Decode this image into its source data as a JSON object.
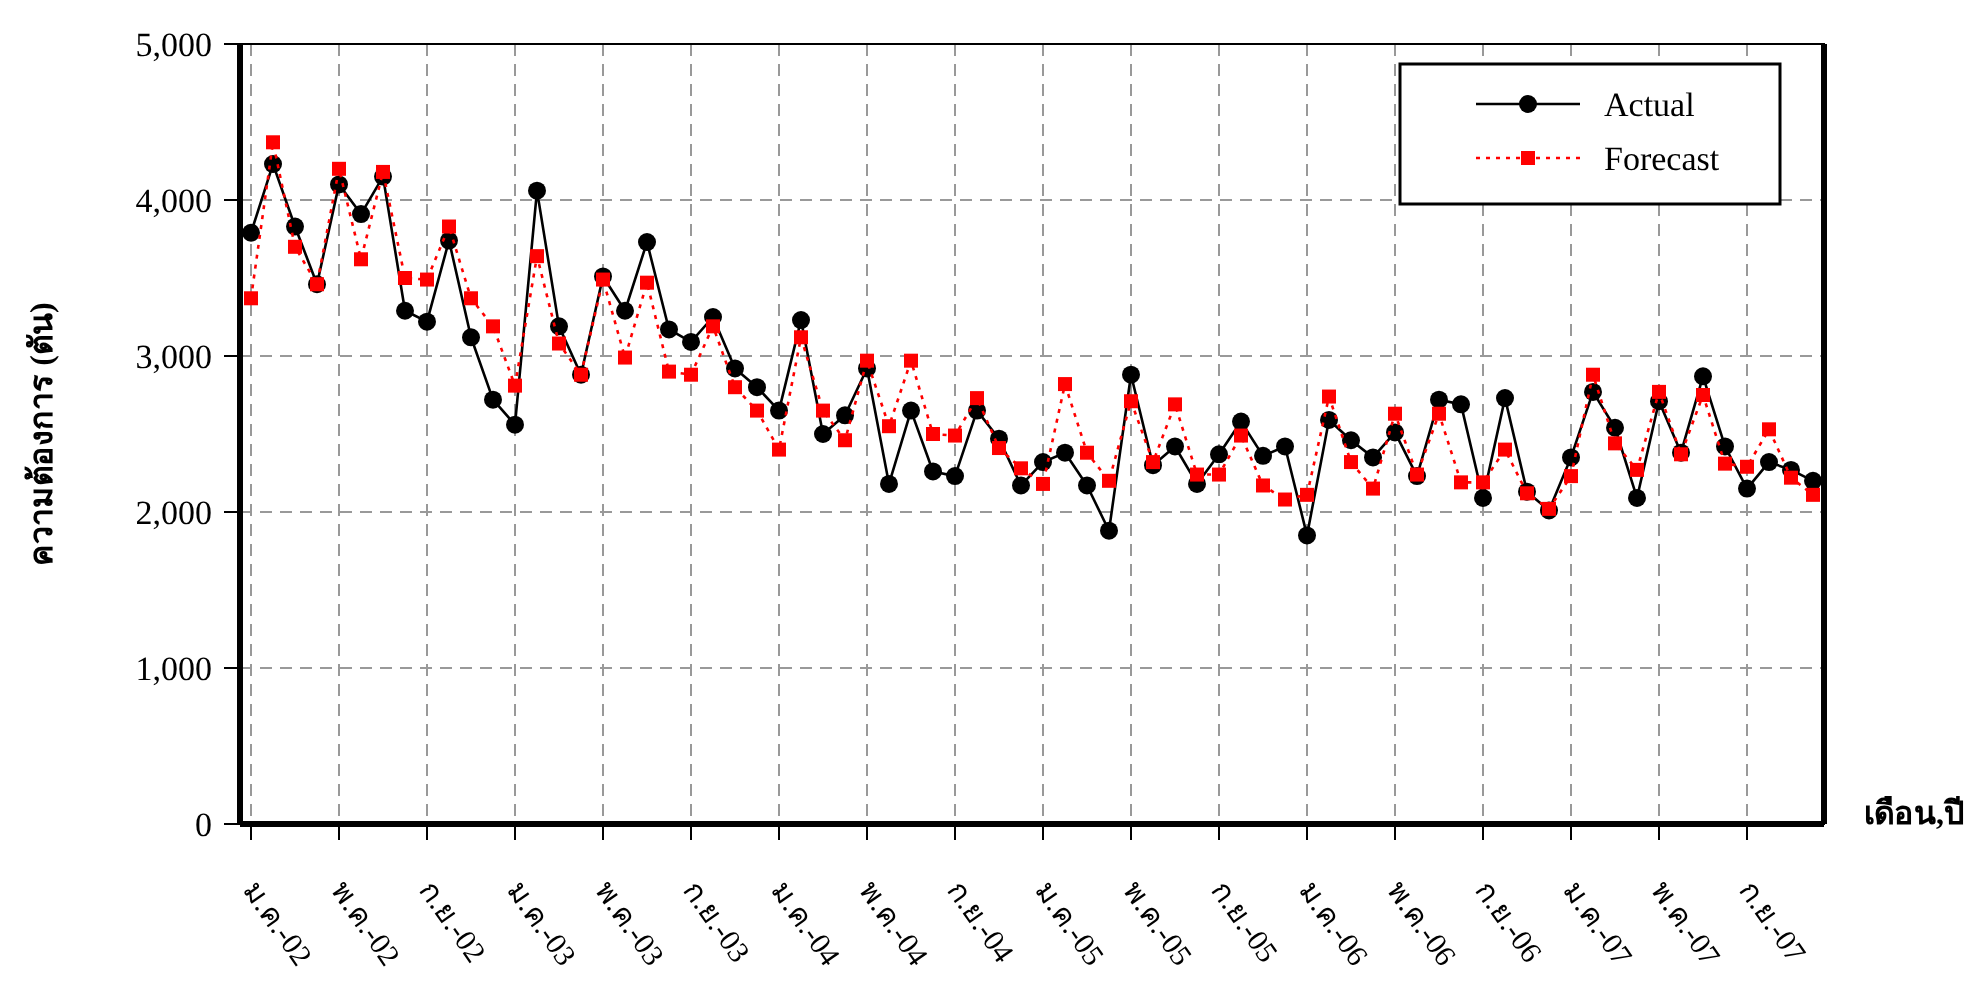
{
  "chart_data": {
    "type": "line",
    "xlabel": "เดือน,ปี",
    "ylabel": "ความต้องการ (ตัน)",
    "categories": [
      "ม.ค.-02",
      null,
      null,
      null,
      "พ.ค.-02",
      null,
      null,
      null,
      "ก.ย.-02",
      null,
      null,
      null,
      "ม.ค.-03",
      null,
      null,
      null,
      "พ.ค.-03",
      null,
      null,
      null,
      "ก.ย.-03",
      null,
      null,
      null,
      "ม.ค.-04",
      null,
      null,
      null,
      "พ.ค.-04",
      null,
      null,
      null,
      "ก.ย.-04",
      null,
      null,
      null,
      "ม.ค.-05",
      null,
      null,
      null,
      "พ.ค.-05",
      null,
      null,
      null,
      "ก.ย.-05",
      null,
      null,
      null,
      "ม.ค.-06",
      null,
      null,
      null,
      "พ.ค.-06",
      null,
      null,
      null,
      "ก.ย.-06",
      null,
      null,
      null,
      "ม.ค.-07",
      null,
      null,
      null,
      "พ.ค.-07",
      null,
      null,
      null,
      "ก.ย.-07",
      null,
      null,
      null
    ],
    "series": [
      {
        "name": "Actual",
        "color": "#000000",
        "marker": "circle",
        "line_style": "solid",
        "values": [
          3790,
          4230,
          3830,
          3460,
          4100,
          3910,
          4150,
          3290,
          3220,
          3740,
          3120,
          2720,
          2560,
          4060,
          3190,
          2880,
          3510,
          3290,
          3730,
          3170,
          3090,
          3250,
          2920,
          2800,
          2650,
          3230,
          2500,
          2620,
          2920,
          2180,
          2650,
          2260,
          2230,
          2650,
          2470,
          2170,
          2320,
          2380,
          2170,
          1880,
          2880,
          2300,
          2420,
          2180,
          2370,
          2580,
          2360,
          2420,
          1850,
          2590,
          2460,
          2350,
          2510,
          2230,
          2720,
          2690,
          2090,
          2730,
          2130,
          2010,
          2350,
          2770,
          2540,
          2090,
          2710,
          2380,
          2870,
          2420,
          2150,
          2320,
          2270,
          2200
        ]
      },
      {
        "name": "Forecast",
        "color": "#ff0000",
        "marker": "square",
        "line_style": "dotted",
        "values": [
          3370,
          4370,
          3700,
          3460,
          4200,
          3620,
          4180,
          3500,
          3490,
          3830,
          3370,
          3190,
          2810,
          3640,
          3080,
          2880,
          3490,
          2990,
          3470,
          2900,
          2880,
          3190,
          2800,
          2650,
          2400,
          3120,
          2650,
          2460,
          2970,
          2550,
          2970,
          2500,
          2490,
          2730,
          2410,
          2280,
          2180,
          2820,
          2380,
          2200,
          2710,
          2320,
          2690,
          2240,
          2240,
          2490,
          2170,
          2080,
          2110,
          2740,
          2320,
          2150,
          2630,
          2240,
          2630,
          2190,
          2190,
          2400,
          2120,
          2020,
          2230,
          2880,
          2440,
          2270,
          2770,
          2370,
          2750,
          2310,
          2290,
          2530,
          2220,
          2110
        ]
      }
    ],
    "ylim": [
      0,
      5000
    ],
    "yticks": [
      0,
      {
        "value": 1000,
        "label": "1,000"
      },
      {
        "value": 2000,
        "label": "2,000"
      },
      {
        "value": 3000,
        "label": "3,000"
      },
      {
        "value": 4000,
        "label": "4,000"
      },
      {
        "value": 5000,
        "label": "5,000"
      }
    ],
    "grid": true,
    "legend": "top right"
  }
}
